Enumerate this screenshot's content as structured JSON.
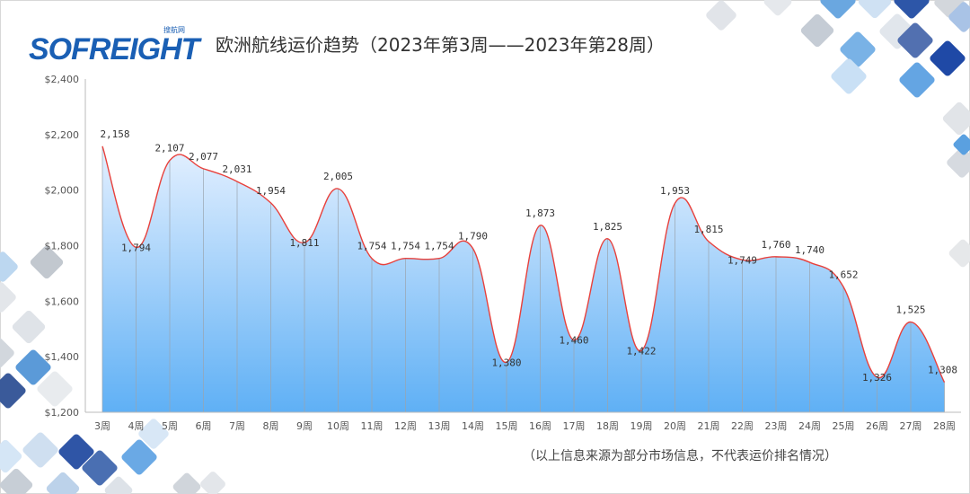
{
  "header": {
    "logo_text": "SOFREIGHT",
    "logo_sub": "搜航网",
    "title": "欧洲航线运价趋势（2023年第3周——2023年第28周）"
  },
  "footer": {
    "note": "（以上信息来源为部分市场信息，不代表运价排名情况）"
  },
  "colors": {
    "line": "#e8413c",
    "area_top": "#dfeeff",
    "area_bottom": "#5fb0f5",
    "axis": "#bbbbbb",
    "brand": "#1a5fb4"
  },
  "chart_data": {
    "type": "area",
    "title": "欧洲航线运价趋势（2023年第3周——2023年第28周）",
    "categories": [
      "3周",
      "4周",
      "5周",
      "6周",
      "7周",
      "8周",
      "9周",
      "10周",
      "11周",
      "12周",
      "13周",
      "14周",
      "15周",
      "16周",
      "17周",
      "18周",
      "19周",
      "20周",
      "21周",
      "22周",
      "23周",
      "24周",
      "25周",
      "26周",
      "27周",
      "28周"
    ],
    "values": [
      2158,
      1794,
      2107,
      2077,
      2031,
      1954,
      1811,
      2005,
      1754,
      1754,
      1754,
      1790,
      1380,
      1873,
      1460,
      1825,
      1422,
      1953,
      1815,
      1749,
      1760,
      1740,
      1652,
      1326,
      1525,
      1308
    ],
    "value_labels": [
      "2,158",
      "1,794",
      "2,107",
      "2,077",
      "2,031",
      "1,954",
      "1,811",
      "2,005",
      "1,754",
      "1,754",
      "1,754",
      "1,790",
      "1,380",
      "1,873",
      "1,460",
      "1,825",
      "1,422",
      "1,953",
      "1,815",
      "1,749",
      "1,760",
      "1,740",
      "1,652",
      "1,326",
      "1,525",
      "1,308"
    ],
    "y_ticks": [
      1200,
      1400,
      1600,
      1800,
      2000,
      2200,
      2400
    ],
    "y_tick_labels": [
      "$1,200",
      "$1,400",
      "$1,600",
      "$1,800",
      "$2,000",
      "$2,200",
      "$2,400"
    ],
    "ylim": [
      1200,
      2400
    ],
    "xlabel": "",
    "ylabel": "",
    "grid": false,
    "legend": "none"
  }
}
